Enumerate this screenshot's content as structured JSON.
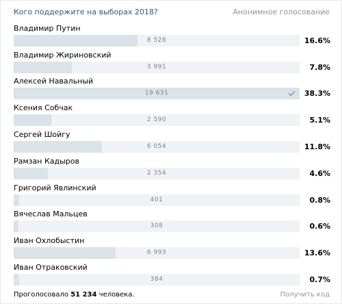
{
  "poll": {
    "question": "Кого поддержите на выборах 2018?",
    "anonymous_label": "Анонимное голосование",
    "options": [
      {
        "label": "Владимир Путин",
        "count": "8 528",
        "percent": "16.6%",
        "share": 0.434,
        "chosen": false
      },
      {
        "label": "Владимир Жириновский",
        "count": "3 991",
        "percent": "7.8%",
        "share": 0.203,
        "chosen": false
      },
      {
        "label": "Алексей Навальный",
        "count": "19 631",
        "percent": "38.3%",
        "share": 1.0,
        "chosen": true
      },
      {
        "label": "Ксения Собчак",
        "count": "2 590",
        "percent": "5.1%",
        "share": 0.132,
        "chosen": false
      },
      {
        "label": "Сергей Шойгу",
        "count": "6 054",
        "percent": "11.8%",
        "share": 0.308,
        "chosen": false
      },
      {
        "label": "Рамзан Кадыров",
        "count": "2 354",
        "percent": "4.6%",
        "share": 0.12,
        "chosen": false
      },
      {
        "label": "Григорий Явлинский",
        "count": "401",
        "percent": "0.8%",
        "share": 0.02,
        "chosen": false
      },
      {
        "label": "Вячеслав Мальцев",
        "count": "308",
        "percent": "0.6%",
        "share": 0.016,
        "chosen": false
      },
      {
        "label": "Иван Охлобыстин",
        "count": "6 993",
        "percent": "13.6%",
        "share": 0.356,
        "chosen": false
      },
      {
        "label": "Иван Отраковский",
        "count": "384",
        "percent": "0.7%",
        "share": 0.02,
        "chosen": false
      }
    ],
    "voted_prefix": "Проголосовало",
    "voted_count": "51 234",
    "voted_suffix": "человека.",
    "get_code_label": "Получить код",
    "check_icon": "checkmark-icon",
    "colors": {
      "question": "#2a5885",
      "muted": "#939393",
      "bar_track": "#f0f2f5",
      "bar_fill": "#dae2ea",
      "check": "#7e9ab8"
    }
  }
}
